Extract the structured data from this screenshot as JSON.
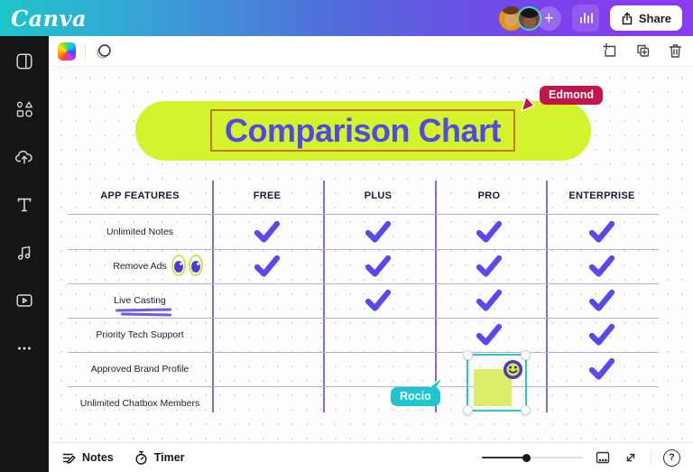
{
  "header": {
    "logo_text": "Canva",
    "add_collaborator_label": "+",
    "share_button": "Share",
    "icons": [
      "avatar",
      "avatar",
      "add-collaborator-icon",
      "stats-icon",
      "share-icon"
    ]
  },
  "sidebar": {
    "icons": [
      "design-icon",
      "elements-icon",
      "uploads-icon",
      "text-icon",
      "audio-icon",
      "videos-icon",
      "more-icon"
    ]
  },
  "doc_toolbar": {
    "icons": [
      "color-picker-swatch",
      "transparency-icon",
      "add-note-icon",
      "duplicate-icon",
      "delete-icon"
    ]
  },
  "canvas": {
    "title": "Comparison Chart"
  },
  "collaborators": {
    "edmond": {
      "name": "Edmond",
      "color": "#c11648"
    },
    "rocio": {
      "name": "Rocio",
      "color": "#1ec7cf"
    }
  },
  "table": {
    "columns": [
      "APP FEATURES",
      "FREE",
      "PLUS",
      "PRO",
      "ENTERPRISE"
    ],
    "rows": [
      {
        "feature": "Unlimited Notes",
        "checks": [
          true,
          true,
          true,
          true
        ]
      },
      {
        "feature": "Remove Ads",
        "checks": [
          true,
          true,
          true,
          true
        ],
        "emoji": "eyes"
      },
      {
        "feature": "Live Casting",
        "checks": [
          false,
          true,
          true,
          true
        ],
        "underline": true
      },
      {
        "feature": "Priority Tech Support",
        "checks": [
          false,
          false,
          true,
          true
        ]
      },
      {
        "feature": "Approved Brand Profile",
        "checks": [
          false,
          false,
          false,
          true
        ]
      },
      {
        "feature": "Unlimited Chatbox Members",
        "checks": [
          false,
          false,
          false,
          false
        ]
      }
    ]
  },
  "selection_group": {
    "contents": [
      "sticky-note",
      "smiley-emoji"
    ],
    "border_color": "#2bc4cf",
    "sticky_color": "#dcee69"
  },
  "footer": {
    "notes_label": "Notes",
    "timer_label": "Timer",
    "help_label": "?",
    "icons": [
      "notes-icon",
      "timer-icon",
      "grid-view-icon",
      "fullscreen-icon",
      "help-icon"
    ]
  },
  "colors": {
    "check_purple": "#5748f0",
    "title_purple": "#4f49e6",
    "pill_lime": "#d5f32a",
    "selection_orange": "#c17c17",
    "grid_line_vertical": "#7b6cf0",
    "grid_line_horizontal": "#b3abee",
    "brand_gradient_start": "#1ec5cb",
    "brand_gradient_end": "#8b3cf2"
  }
}
